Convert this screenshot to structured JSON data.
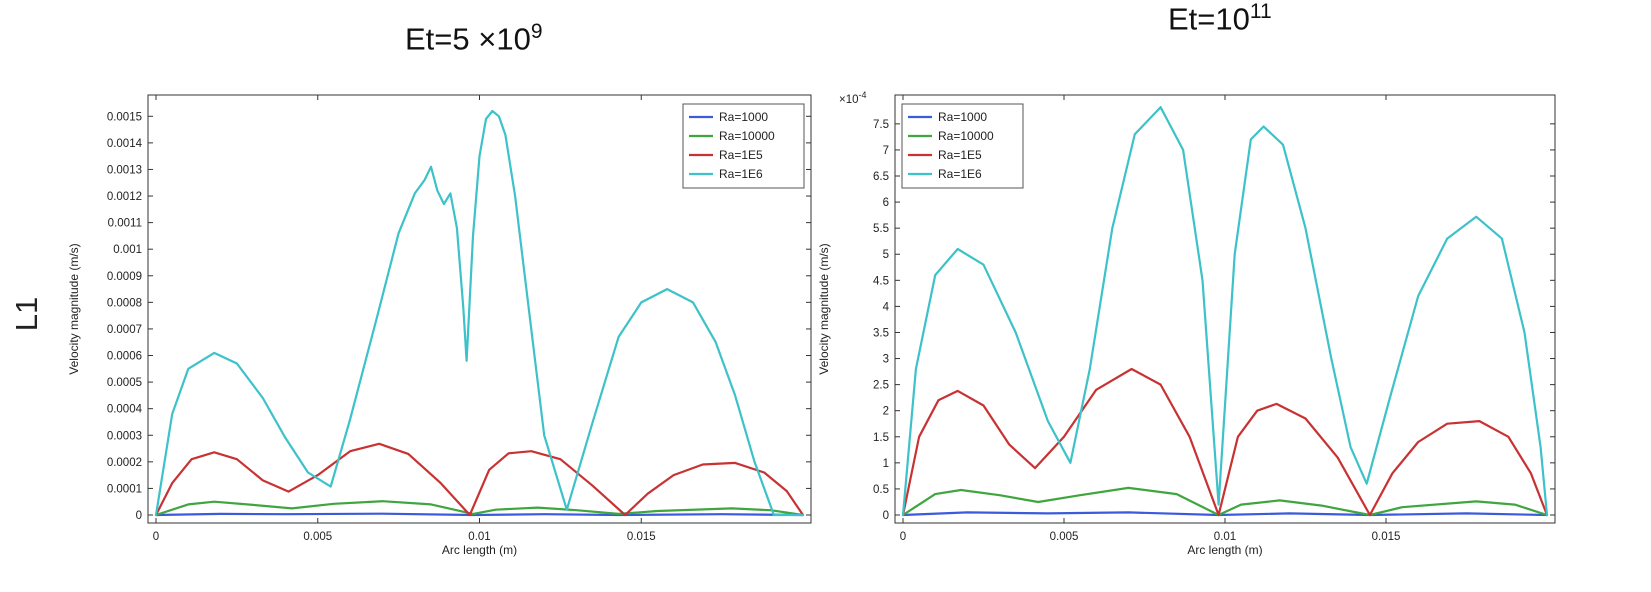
{
  "headings": {
    "left_title_base": "Et=5  ×10",
    "left_title_exp": "9",
    "right_title_base": "Et=10",
    "right_title_exp": "11",
    "row_label": "L1"
  },
  "chart_data": [
    {
      "type": "line",
      "title": "Et=5  ×10^9",
      "xlabel": "Arc length (m)",
      "ylabel": "Velocity magnitude (m/s)",
      "xlim": [
        0,
        0.02
      ],
      "ylim": [
        0,
        0.00155
      ],
      "xticks": [
        0,
        0.005,
        0.01,
        0.015
      ],
      "xtick_labels": [
        "0",
        "0.005",
        "0.01",
        "0.015"
      ],
      "yticks": [
        0,
        0.0001,
        0.0002,
        0.0003,
        0.0004,
        0.0005,
        0.0006,
        0.0007,
        0.0008,
        0.0009,
        0.001,
        0.0011,
        0.0012,
        0.0013,
        0.0014,
        0.0015
      ],
      "ytick_labels": [
        "0",
        "0.0001",
        "0.0002",
        "0.0003",
        "0.0004",
        "0.0005",
        "0.0006",
        "0.0007",
        "0.0008",
        "0.0009",
        "0.001",
        "0.0011",
        "0.0012",
        "0.0013",
        "0.0014",
        "0.0015"
      ],
      "legend_position": "top-right",
      "series": [
        {
          "name": "Ra=1000",
          "color": "#3b5bdb",
          "x": [
            0,
            0.002,
            0.004,
            0.007,
            0.0098,
            0.012,
            0.0143,
            0.0175,
            0.02
          ],
          "y": [
            0,
            4e-06,
            3e-06,
            5e-06,
            0,
            3e-06,
            0,
            3e-06,
            0
          ]
        },
        {
          "name": "Ra=10000",
          "color": "#3fa53f",
          "x": [
            0,
            0.001,
            0.0018,
            0.003,
            0.0042,
            0.0055,
            0.007,
            0.0085,
            0.0098,
            0.0105,
            0.0118,
            0.013,
            0.0143,
            0.0155,
            0.0178,
            0.019,
            0.02
          ],
          "y": [
            0,
            4e-05,
            5e-05,
            3.8e-05,
            2.5e-05,
            4.2e-05,
            5.2e-05,
            4e-05,
            4e-06,
            2e-05,
            2.8e-05,
            1.8e-05,
            4e-06,
            1.5e-05,
            2.5e-05,
            1.8e-05,
            0
          ]
        },
        {
          "name": "Ra=1E5",
          "color": "#c83232",
          "x": [
            0,
            0.0005,
            0.0011,
            0.0018,
            0.0025,
            0.0033,
            0.0041,
            0.005,
            0.006,
            0.0069,
            0.0078,
            0.0088,
            0.0097,
            0.0103,
            0.0109,
            0.0116,
            0.0125,
            0.0135,
            0.0145,
            0.0152,
            0.016,
            0.0169,
            0.0179,
            0.0188,
            0.0195,
            0.02
          ],
          "y": [
            0,
            0.00012,
            0.00021,
            0.000236,
            0.00021,
            0.00013,
            8.8e-05,
            0.00015,
            0.00024,
            0.000268,
            0.00023,
            0.00012,
            0,
            0.00017,
            0.000232,
            0.00024,
            0.00021,
            0.00011,
            0,
            8e-05,
            0.00015,
            0.00019,
            0.000196,
            0.00016,
            9e-05,
            0
          ]
        },
        {
          "name": "Ra=1E6",
          "color": "#3cc2c8",
          "x": [
            0,
            0.0005,
            0.001,
            0.0018,
            0.0025,
            0.0033,
            0.004,
            0.0047,
            0.0054,
            0.006,
            0.0068,
            0.0075,
            0.008,
            0.0083,
            0.0085,
            0.0087,
            0.0089,
            0.0091,
            0.0093,
            0.0095,
            0.0096,
            0.0098,
            0.01,
            0.0102,
            0.0104,
            0.0106,
            0.0108,
            0.0111,
            0.0115,
            0.012,
            0.0127,
            0.0135,
            0.0143,
            0.015,
            0.0158,
            0.0166,
            0.0173,
            0.0179,
            0.0185,
            0.0191,
            0.0196,
            0.02
          ],
          "y": [
            0,
            0.00038,
            0.00055,
            0.00061,
            0.00057,
            0.00044,
            0.00029,
            0.00016,
            0.000107,
            0.00036,
            0.00073,
            0.00106,
            0.00121,
            0.00126,
            0.00131,
            0.00122,
            0.00117,
            0.00121,
            0.00108,
            0.00078,
            0.00058,
            0.00105,
            0.00135,
            0.00149,
            0.00152,
            0.0015,
            0.00143,
            0.0012,
            0.0008,
            0.0003,
            2e-05,
            0.00035,
            0.00067,
            0.0008,
            0.00085,
            0.0008,
            0.00065,
            0.00045,
            0.0002,
            0,
            0,
            0
          ]
        }
      ]
    },
    {
      "type": "line",
      "title": "Et=10^11",
      "xlabel": "Arc length (m)",
      "ylabel": "Velocity magnitude (m/s)",
      "y_multiplier": "×10",
      "y_multiplier_exp": "-4",
      "xlim": [
        0,
        0.02
      ],
      "ylim": [
        0,
        7.9
      ],
      "xticks": [
        0,
        0.005,
        0.01,
        0.015
      ],
      "xtick_labels": [
        "0",
        "0.005",
        "0.01",
        "0.015"
      ],
      "yticks": [
        0,
        0.5,
        1,
        1.5,
        2,
        2.5,
        3,
        3.5,
        4,
        4.5,
        5,
        5.5,
        6,
        6.5,
        7,
        7.5
      ],
      "ytick_labels": [
        "0",
        "0.5",
        "1",
        "1.5",
        "2",
        "2.5",
        "3",
        "3.5",
        "4",
        "4.5",
        "5",
        "5.5",
        "6",
        "6.5",
        "7",
        "7.5"
      ],
      "legend_position": "top-left",
      "series": [
        {
          "name": "Ra=1000",
          "color": "#3b5bdb",
          "x": [
            0,
            0.002,
            0.0045,
            0.007,
            0.0098,
            0.012,
            0.0145,
            0.0175,
            0.02
          ],
          "y": [
            0,
            0.05,
            0.03,
            0.05,
            0,
            0.03,
            0,
            0.03,
            0
          ]
        },
        {
          "name": "Ra=10000",
          "color": "#3fa53f",
          "x": [
            0,
            0.001,
            0.0018,
            0.003,
            0.0042,
            0.0055,
            0.007,
            0.0085,
            0.0098,
            0.0105,
            0.0117,
            0.013,
            0.0145,
            0.0155,
            0.0178,
            0.019,
            0.02
          ],
          "y": [
            0,
            0.4,
            0.48,
            0.38,
            0.25,
            0.38,
            0.52,
            0.4,
            0,
            0.2,
            0.28,
            0.18,
            0,
            0.15,
            0.26,
            0.2,
            0
          ]
        },
        {
          "name": "Ra=1E5",
          "color": "#c83232",
          "x": [
            0,
            0.0005,
            0.0011,
            0.0017,
            0.0025,
            0.0033,
            0.0041,
            0.005,
            0.006,
            0.0071,
            0.008,
            0.0089,
            0.0098,
            0.0104,
            0.011,
            0.0116,
            0.0125,
            0.0135,
            0.0145,
            0.0152,
            0.016,
            0.0169,
            0.0179,
            0.0188,
            0.0195,
            0.02
          ],
          "y": [
            0,
            1.5,
            2.2,
            2.38,
            2.1,
            1.35,
            0.9,
            1.5,
            2.4,
            2.8,
            2.5,
            1.5,
            0,
            1.5,
            2.0,
            2.13,
            1.85,
            1.1,
            0,
            0.8,
            1.4,
            1.75,
            1.8,
            1.5,
            0.8,
            0
          ]
        },
        {
          "name": "Ra=1E6",
          "color": "#3cc2c8",
          "x": [
            0,
            0.0004,
            0.001,
            0.0017,
            0.0025,
            0.0035,
            0.0045,
            0.0052,
            0.0058,
            0.0065,
            0.0072,
            0.008,
            0.0087,
            0.0093,
            0.0098,
            0.0103,
            0.0108,
            0.0112,
            0.0118,
            0.0125,
            0.0133,
            0.0139,
            0.0144,
            0.0151,
            0.016,
            0.0169,
            0.0178,
            0.0186,
            0.0193,
            0.0198,
            0.02
          ],
          "y": [
            0,
            2.8,
            4.6,
            5.1,
            4.8,
            3.5,
            1.8,
            1.0,
            2.8,
            5.5,
            7.3,
            7.82,
            7.0,
            4.5,
            0.2,
            5.0,
            7.2,
            7.45,
            7.1,
            5.5,
            3.0,
            1.3,
            0.6,
            2.2,
            4.2,
            5.3,
            5.72,
            5.3,
            3.5,
            1.3,
            0
          ]
        }
      ]
    }
  ]
}
